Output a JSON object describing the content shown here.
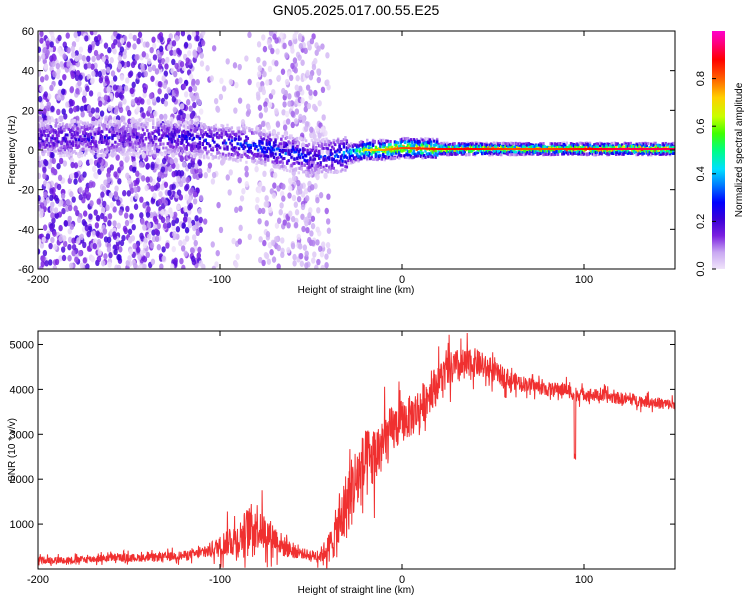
{
  "title": "GN05.2025.017.00.55.E25",
  "chart_data": [
    {
      "type": "heatmap",
      "xlabel": "Height of straight line (km)",
      "ylabel": "Frequency (Hz)",
      "xlim": [
        -200,
        150
      ],
      "ylim": [
        -60,
        60
      ],
      "xticks": [
        -200,
        -100,
        0,
        100
      ],
      "xtick_labels": [
        "-200",
        "-100",
        "0",
        "100"
      ],
      "yticks": [
        -60,
        -40,
        -20,
        0,
        20,
        40,
        60
      ],
      "ytick_labels": [
        "-60",
        "-40",
        "-20",
        "0",
        "20",
        "40",
        "60"
      ],
      "colorbar": {
        "label": "Normalized spectral amplitude",
        "range": [
          0,
          1
        ],
        "ticks": [
          0.0,
          0.2,
          0.4,
          0.6,
          0.8
        ],
        "tick_labels": [
          "0.0",
          "0.2",
          "0.4",
          "0.6",
          "0.8"
        ],
        "colormap": [
          "#f0e4fa",
          "#c9a8f2",
          "#7a1fe0",
          "#3a00d8",
          "#0000ff",
          "#0077ff",
          "#00e0ff",
          "#00ff80",
          "#40ff00",
          "#c8ff00",
          "#ffd000",
          "#ff6000",
          "#ff0000",
          "#ff0080",
          "#ff00cc"
        ]
      },
      "ridge": {
        "x": [
          -160,
          -140,
          -120,
          -100,
          -80,
          -60,
          -50,
          -40,
          -30,
          -20,
          -10,
          0,
          20,
          40,
          60,
          80,
          100,
          120,
          150
        ],
        "frequency": [
          6,
          7,
          6,
          4,
          2,
          -2,
          -4,
          -3,
          -2,
          0,
          0,
          1,
          0.5,
          0.5,
          0.5,
          0.5,
          0.5,
          0.5,
          0.5
        ],
        "amplitude": [
          0.25,
          0.2,
          0.3,
          0.3,
          0.35,
          0.35,
          0.3,
          0.3,
          0.45,
          0.7,
          0.75,
          0.8,
          0.85,
          0.85,
          0.8,
          0.8,
          0.85,
          0.9,
          0.9
        ]
      },
      "grid": false
    },
    {
      "type": "line",
      "xlabel": "Height of straight line (km)",
      "ylabel": "SNR (10 * v/v)",
      "xlim": [
        -200,
        150
      ],
      "ylim": [
        0,
        5300
      ],
      "xticks": [
        -200,
        -100,
        0,
        100
      ],
      "xtick_labels": [
        "-200",
        "-100",
        "0",
        "100"
      ],
      "yticks": [
        1000,
        2000,
        3000,
        4000,
        5000
      ],
      "ytick_labels": [
        "1000",
        "2000",
        "3000",
        "4000",
        "5000"
      ],
      "color": "#f03030",
      "series": [
        {
          "x": [
            -200,
            -180,
            -160,
            -140,
            -120,
            -110,
            -100,
            -95,
            -90,
            -85,
            -80,
            -75,
            -70,
            -65,
            -60,
            -55,
            -50,
            -45,
            -40,
            -35,
            -30,
            -25,
            -20,
            -15,
            -10,
            -5,
            0,
            5,
            10,
            15,
            20,
            25,
            30,
            35,
            40,
            45,
            50,
            55,
            60,
            70,
            80,
            90,
            95,
            100,
            110,
            120,
            130,
            140,
            150
          ],
          "y": [
            200,
            200,
            250,
            250,
            300,
            350,
            500,
            650,
            650,
            900,
            1000,
            800,
            700,
            500,
            400,
            350,
            300,
            300,
            500,
            900,
            1500,
            2000,
            2300,
            2500,
            2800,
            3100,
            3300,
            3400,
            3600,
            3900,
            4200,
            4400,
            4500,
            4500,
            4600,
            4500,
            4400,
            4300,
            4200,
            4100,
            4000,
            4000,
            3900,
            3900,
            3850,
            3800,
            3750,
            3700,
            3650
          ],
          "spread": [
            100,
            100,
            110,
            110,
            130,
            150,
            300,
            450,
            500,
            600,
            700,
            500,
            400,
            300,
            200,
            150,
            150,
            200,
            400,
            800,
            1000,
            1000,
            1000,
            900,
            800,
            700,
            600,
            600,
            600,
            550,
            500,
            500,
            500,
            500,
            400,
            350,
            300,
            300,
            250,
            200,
            200,
            200,
            200,
            180,
            180,
            170,
            160,
            160,
            150
          ]
        }
      ],
      "annotations": [
        {
          "x": 95,
          "y": 2300,
          "label": ""
        }
      ],
      "grid": false
    }
  ]
}
